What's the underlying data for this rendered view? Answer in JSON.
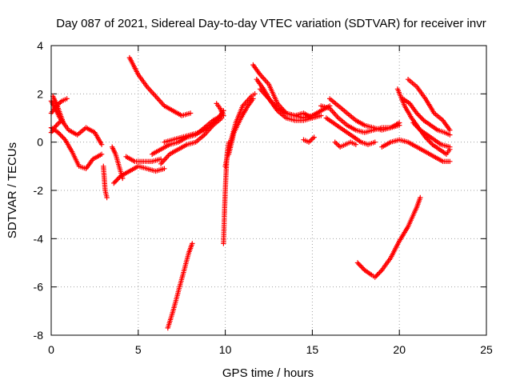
{
  "chart_data": {
    "type": "scatter",
    "title": "Day 087 of 2021, Sidereal Day-to-day VTEC variation (SDTVAR) for receiver invr",
    "xlabel": "GPS time / hours",
    "ylabel": "SDTVAR / TECUs",
    "xlim": [
      0,
      25
    ],
    "ylim": [
      -8,
      4
    ],
    "xticks": [
      0,
      5,
      10,
      15,
      20,
      25
    ],
    "yticks": [
      -8,
      -6,
      -4,
      -2,
      0,
      2,
      4
    ],
    "grid": true,
    "marker": "plus",
    "color": "#ff0000",
    "series": [
      {
        "x": [
          0.0,
          0.5,
          1.0,
          1.5,
          2.0,
          2.5,
          2.9
        ],
        "y": [
          1.7,
          1.0,
          0.5,
          0.3,
          0.6,
          0.4,
          -0.1
        ]
      },
      {
        "x": [
          0.0,
          0.4,
          0.8,
          1.2,
          1.6,
          2.0,
          2.4,
          2.9
        ],
        "y": [
          0.6,
          0.4,
          0.1,
          -0.4,
          -1.0,
          -1.1,
          -0.7,
          -0.5
        ]
      },
      {
        "x": [
          0.0,
          0.3,
          0.6,
          0.9
        ],
        "y": [
          1.2,
          1.5,
          1.7,
          1.8
        ]
      },
      {
        "x": [
          0.1,
          0.3,
          0.5,
          0.7
        ],
        "y": [
          1.9,
          1.6,
          1.2,
          0.8
        ]
      },
      {
        "x": [
          0.0,
          0.3,
          0.6
        ],
        "y": [
          0.4,
          0.7,
          0.9
        ]
      },
      {
        "x": [
          3.0,
          3.05,
          3.1,
          3.2
        ],
        "y": [
          -1.0,
          -1.5,
          -2.0,
          -2.3
        ]
      },
      {
        "x": [
          3.5,
          3.7,
          3.9,
          4.1
        ],
        "y": [
          -0.2,
          -0.5,
          -1.0,
          -1.5
        ]
      },
      {
        "x": [
          3.6,
          4.0,
          4.5,
          5.0,
          5.5,
          6.0,
          6.5
        ],
        "y": [
          -1.7,
          -1.4,
          -1.2,
          -1.0,
          -1.1,
          -1.2,
          -1.1
        ]
      },
      {
        "x": [
          4.3,
          4.8,
          5.3,
          5.8,
          6.3
        ],
        "y": [
          -0.6,
          -0.8,
          -0.8,
          -0.8,
          -0.7
        ]
      },
      {
        "x": [
          4.5,
          5.0,
          5.5,
          6.0,
          6.5,
          7.0,
          7.5,
          8.0
        ],
        "y": [
          3.5,
          2.8,
          2.3,
          1.9,
          1.5,
          1.3,
          1.1,
          1.2
        ]
      },
      {
        "x": [
          6.3,
          6.8,
          7.3,
          7.8,
          8.3,
          8.8,
          9.3,
          9.8
        ],
        "y": [
          -0.9,
          -0.5,
          -0.3,
          -0.1,
          0.0,
          0.3,
          0.7,
          1.0
        ]
      },
      {
        "x": [
          5.8,
          6.3,
          6.8,
          7.3,
          7.8,
          8.3,
          8.8,
          9.3,
          9.8
        ],
        "y": [
          -0.5,
          -0.3,
          -0.1,
          0.0,
          0.2,
          0.3,
          0.6,
          0.9,
          1.1
        ]
      },
      {
        "x": [
          6.5,
          7.0,
          7.5,
          8.0,
          8.5,
          9.0,
          9.5,
          9.9
        ],
        "y": [
          0.0,
          0.1,
          0.2,
          0.3,
          0.4,
          0.6,
          0.9,
          1.3
        ]
      },
      {
        "x": [
          9.5,
          9.7,
          9.9
        ],
        "y": [
          1.6,
          1.4,
          1.1
        ]
      },
      {
        "x": [
          6.7,
          7.0,
          7.3,
          7.6,
          7.9,
          8.1
        ],
        "y": [
          -7.7,
          -7.0,
          -6.2,
          -5.4,
          -4.6,
          -4.2
        ]
      },
      {
        "x": [
          9.9,
          9.95,
          10.0,
          10.05,
          10.1,
          10.2
        ],
        "y": [
          -4.2,
          -3.0,
          -2.0,
          -1.2,
          -0.5,
          0.0
        ]
      },
      {
        "x": [
          10.0,
          10.3,
          10.6,
          11.0,
          11.5,
          11.7
        ],
        "y": [
          -1.0,
          0.0,
          0.8,
          1.5,
          1.9,
          2.0
        ]
      },
      {
        "x": [
          10.2,
          10.5,
          10.9,
          11.3,
          11.6
        ],
        "y": [
          -0.5,
          0.4,
          1.0,
          1.5,
          1.8
        ]
      },
      {
        "x": [
          11.6,
          12.0,
          12.5,
          13.0,
          13.5,
          14.0,
          14.5,
          15.0,
          15.5,
          16.0
        ],
        "y": [
          3.2,
          2.8,
          2.4,
          1.6,
          1.2,
          1.1,
          1.0,
          1.1,
          1.3,
          1.5
        ]
      },
      {
        "x": [
          11.8,
          12.2,
          12.6,
          13.0,
          13.5,
          14.0,
          14.5,
          15.0
        ],
        "y": [
          2.6,
          2.2,
          1.7,
          1.3,
          1.0,
          0.9,
          0.9,
          1.0
        ]
      },
      {
        "x": [
          12.0,
          12.5,
          13.0,
          13.5,
          14.0,
          14.5,
          15.0,
          15.5
        ],
        "y": [
          2.2,
          1.8,
          1.4,
          1.2,
          1.1,
          1.2,
          1.0,
          1.1
        ]
      },
      {
        "x": [
          14.5,
          14.8,
          15.1
        ],
        "y": [
          0.1,
          0.0,
          0.2
        ]
      },
      {
        "x": [
          15.5,
          16.0,
          16.5,
          17.0,
          17.5,
          18.0,
          18.5,
          19.0,
          19.5,
          20.0
        ],
        "y": [
          1.5,
          1.4,
          1.0,
          0.7,
          0.5,
          0.4,
          0.5,
          0.6,
          0.6,
          0.8
        ]
      },
      {
        "x": [
          15.8,
          16.2,
          16.6,
          17.0,
          17.4,
          17.8,
          18.2,
          18.6
        ],
        "y": [
          1.0,
          0.8,
          0.6,
          0.4,
          0.2,
          0.0,
          -0.1,
          0.0
        ]
      },
      {
        "x": [
          16.0,
          16.5,
          17.0,
          17.5,
          18.0,
          18.5,
          19.0,
          19.5,
          20.0
        ],
        "y": [
          1.8,
          1.5,
          1.2,
          0.9,
          0.7,
          0.6,
          0.5,
          0.6,
          0.7
        ]
      },
      {
        "x": [
          16.3,
          16.6,
          16.9,
          17.2,
          17.5
        ],
        "y": [
          0.0,
          -0.2,
          -0.1,
          0.0,
          -0.1
        ]
      },
      {
        "x": [
          17.6,
          18.0,
          18.4,
          18.6,
          19.0,
          19.5,
          20.0,
          20.5,
          21.0,
          21.2
        ],
        "y": [
          -5.0,
          -5.3,
          -5.5,
          -5.6,
          -5.3,
          -4.8,
          -4.1,
          -3.5,
          -2.7,
          -2.3
        ]
      },
      {
        "x": [
          19.0,
          19.5,
          20.0,
          20.5,
          21.0,
          21.5,
          22.0,
          22.5,
          22.9
        ],
        "y": [
          -0.2,
          0.0,
          0.1,
          0.0,
          -0.2,
          -0.4,
          -0.6,
          -0.8,
          -0.8
        ]
      },
      {
        "x": [
          19.9,
          20.3,
          20.7,
          21.1,
          21.5,
          21.9,
          22.3,
          22.7,
          22.9
        ],
        "y": [
          2.2,
          1.5,
          1.0,
          0.6,
          0.2,
          -0.1,
          -0.3,
          -0.5,
          -0.3
        ]
      },
      {
        "x": [
          20.2,
          20.6,
          21.0,
          21.4,
          21.8,
          22.2,
          22.6,
          22.9
        ],
        "y": [
          1.8,
          1.6,
          1.2,
          0.9,
          0.7,
          0.5,
          0.4,
          0.3
        ]
      },
      {
        "x": [
          20.5,
          21.0,
          21.5,
          22.0,
          22.5,
          22.9
        ],
        "y": [
          2.6,
          2.3,
          1.8,
          1.2,
          0.9,
          0.5
        ]
      },
      {
        "x": [
          20.8,
          21.2,
          21.6,
          22.0,
          22.4,
          22.9
        ],
        "y": [
          0.8,
          0.5,
          0.3,
          0.1,
          -0.1,
          -0.2
        ]
      }
    ]
  }
}
